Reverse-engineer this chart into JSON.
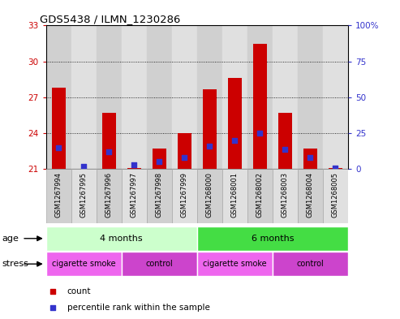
{
  "title": "GDS5438 / ILMN_1230286",
  "samples": [
    "GSM1267994",
    "GSM1267995",
    "GSM1267996",
    "GSM1267997",
    "GSM1267998",
    "GSM1267999",
    "GSM1268000",
    "GSM1268001",
    "GSM1268002",
    "GSM1268003",
    "GSM1268004",
    "GSM1268005"
  ],
  "counts": [
    27.8,
    21.05,
    25.7,
    21.1,
    22.7,
    24.0,
    27.7,
    28.6,
    31.5,
    25.7,
    22.7,
    21.1
  ],
  "percentile_ranks": [
    15,
    2,
    12,
    3,
    5,
    8,
    16,
    20,
    25,
    14,
    8,
    1
  ],
  "ymin": 21,
  "ymax": 33,
  "yticks_left": [
    21,
    24,
    27,
    30,
    33
  ],
  "yticks_right": [
    0,
    25,
    50,
    75,
    100
  ],
  "bar_color": "#cc0000",
  "dot_color": "#3333cc",
  "bar_width": 0.55,
  "dot_size": 20,
  "col_colors": [
    "#d0d0d0",
    "#e0e0e0"
  ],
  "age_groups": [
    {
      "label": "4 months",
      "start": 0,
      "end": 6,
      "color": "#ccffcc"
    },
    {
      "label": "6 months",
      "start": 6,
      "end": 12,
      "color": "#44dd44"
    }
  ],
  "stress_groups": [
    {
      "label": "cigarette smoke",
      "start": 0,
      "end": 3,
      "color": "#ee66ee"
    },
    {
      "label": "control",
      "start": 3,
      "end": 6,
      "color": "#cc44cc"
    },
    {
      "label": "cigarette smoke",
      "start": 6,
      "end": 9,
      "color": "#ee66ee"
    },
    {
      "label": "control",
      "start": 9,
      "end": 12,
      "color": "#cc44cc"
    }
  ],
  "legend_items": [
    {
      "label": "count",
      "color": "#cc0000"
    },
    {
      "label": "percentile rank within the sample",
      "color": "#3333cc"
    }
  ],
  "left_axis_color": "#cc0000",
  "right_axis_color": "#3333cc",
  "background_color": "#ffffff",
  "plot_bg_color": "#ffffff",
  "grid_color": "#000000",
  "border_color": "#000000"
}
